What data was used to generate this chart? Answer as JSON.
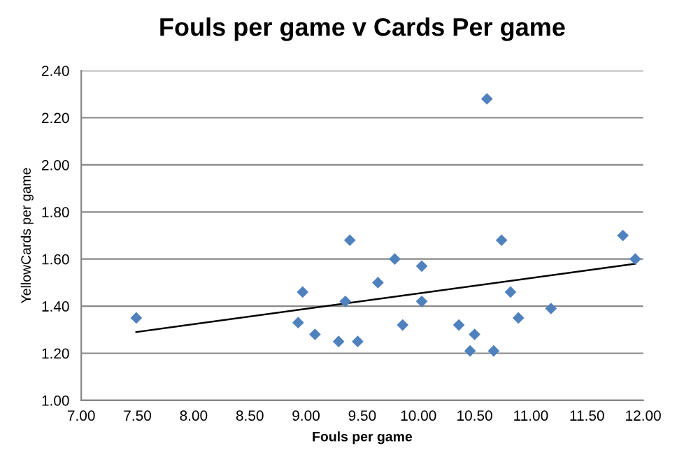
{
  "chart_data": {
    "type": "scatter",
    "title": "Fouls per game v Cards Per game",
    "xlabel": "Fouls per game",
    "ylabel": "YellowCards per game",
    "series": [
      {
        "color": "#4f81bd",
        "marker": "diamond",
        "x": [
          7.49,
          8.93,
          8.97,
          9.08,
          9.29,
          9.35,
          9.39,
          9.46,
          9.64,
          9.79,
          9.86,
          10.03,
          10.03,
          10.36,
          10.46,
          10.5,
          10.61,
          10.67,
          10.74,
          10.82,
          10.89,
          11.18,
          11.82,
          11.93
        ],
        "values": [
          1.35,
          1.33,
          1.46,
          1.28,
          1.25,
          1.42,
          1.68,
          1.25,
          1.5,
          1.6,
          1.32,
          1.57,
          1.42,
          1.32,
          1.21,
          1.28,
          2.28,
          1.21,
          1.68,
          1.46,
          1.35,
          1.39,
          1.7,
          1.6
        ]
      },
      {
        "type": "line",
        "color": "#000000",
        "marker": "none",
        "x": [
          7.49,
          11.93
        ],
        "values": [
          1.29,
          1.58
        ]
      }
    ],
    "xlim": [
      7.0,
      12.0
    ],
    "xticks": [
      {
        "value": 7.0,
        "label": "7.00"
      },
      {
        "value": 7.5,
        "label": "7.50"
      },
      {
        "value": 8.0,
        "label": "8.00"
      },
      {
        "value": 8.5,
        "label": "8.50"
      },
      {
        "value": 9.0,
        "label": "9.00"
      },
      {
        "value": 9.5,
        "label": "9.50"
      },
      {
        "value": 10.0,
        "label": "10.00"
      },
      {
        "value": 10.5,
        "label": "10.50"
      },
      {
        "value": 11.0,
        "label": "11.00"
      },
      {
        "value": 11.5,
        "label": "11.50"
      },
      {
        "value": 12.0,
        "label": "12.00"
      }
    ],
    "ylim": [
      1.0,
      2.4
    ],
    "yticks": [
      {
        "value": 1.0,
        "label": "1.00"
      },
      {
        "value": 1.2,
        "label": "1.20"
      },
      {
        "value": 1.4,
        "label": "1.40"
      },
      {
        "value": 1.6,
        "label": "1.60"
      },
      {
        "value": 1.8,
        "label": "1.80"
      },
      {
        "value": 2.0,
        "label": "2.00"
      },
      {
        "value": 2.2,
        "label": "2.20"
      },
      {
        "value": 2.4,
        "label": "2.40"
      }
    ],
    "grid": "y",
    "legend": false
  }
}
